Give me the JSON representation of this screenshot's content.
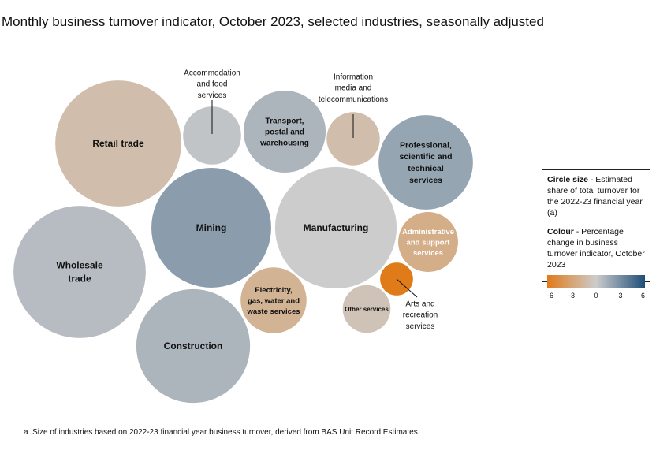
{
  "chart_data": {
    "type": "bubble",
    "title": "Monthly business turnover indicator, October 2023, selected industries, seasonally adjusted",
    "legend": {
      "size_label": "Circle size",
      "size_text": " - Estimated share of total turnover for the 2022-23 financial year (a)",
      "colour_label": "Colour",
      "colour_text": " - Percentage change in business turnover indicator, October 2023",
      "scale_ticks": [
        "-6",
        "-3",
        "0",
        "3",
        "6"
      ],
      "scale_range": [
        -6,
        6
      ],
      "colors": {
        "low": "#e07b1a",
        "mid": "#cccccc",
        "high": "#1f4e79"
      },
      "placement": "right"
    },
    "industries": [
      {
        "name": "Retail trade",
        "lines": [
          "Retail trade"
        ],
        "size": 14.6,
        "change": -1.5
      },
      {
        "name": "Accommodation and food services",
        "lines": [
          "Accommodation",
          "and food",
          "services"
        ],
        "size": 3.1,
        "change": 0.5,
        "external": true
      },
      {
        "name": "Transport, postal and warehousing",
        "lines": [
          "Transport,",
          "postal and",
          "warehousing"
        ],
        "size": 6.2,
        "change": 1.5
      },
      {
        "name": "Information media and telecommunications",
        "lines": [
          "Information",
          "media and",
          "telecommunications"
        ],
        "size": 2.6,
        "change": -1.5,
        "external": true
      },
      {
        "name": "Professional, scientific and technical services",
        "lines": [
          "Professional,",
          "scientific and",
          "technical",
          "services"
        ],
        "size": 8.2,
        "change": 2.5
      },
      {
        "name": "Mining",
        "lines": [
          "Mining"
        ],
        "size": 13.2,
        "change": 3.0
      },
      {
        "name": "Manufacturing",
        "lines": [
          "Manufacturing"
        ],
        "size": 13.6,
        "change": 0.0
      },
      {
        "name": "Administrative and support services",
        "lines": [
          "Administrative",
          "and support",
          "services"
        ],
        "size": 3.3,
        "change": -3.0
      },
      {
        "name": "Arts and recreation services",
        "lines": [
          "Arts and",
          "recreation",
          "services"
        ],
        "size": 1.0,
        "change": -6.0,
        "external": true
      },
      {
        "name": "Other services",
        "lines": [
          "Other services"
        ],
        "size": 2.1,
        "change": -1.0
      },
      {
        "name": "Electricity, gas, water and waste services",
        "lines": [
          "Electricity,",
          "gas, water and",
          "waste services"
        ],
        "size": 4.0,
        "change": -2.5
      },
      {
        "name": "Wholesale trade",
        "lines": [
          "Wholesale",
          "trade"
        ],
        "size": 16.1,
        "change": 1.0
      },
      {
        "name": "Construction",
        "lines": [
          "Construction"
        ],
        "size": 11.9,
        "change": 1.5
      }
    ]
  },
  "footnote": "a. Size of industries based on 2022-23 financial year business turnover, derived from BAS Unit Record Estimates."
}
